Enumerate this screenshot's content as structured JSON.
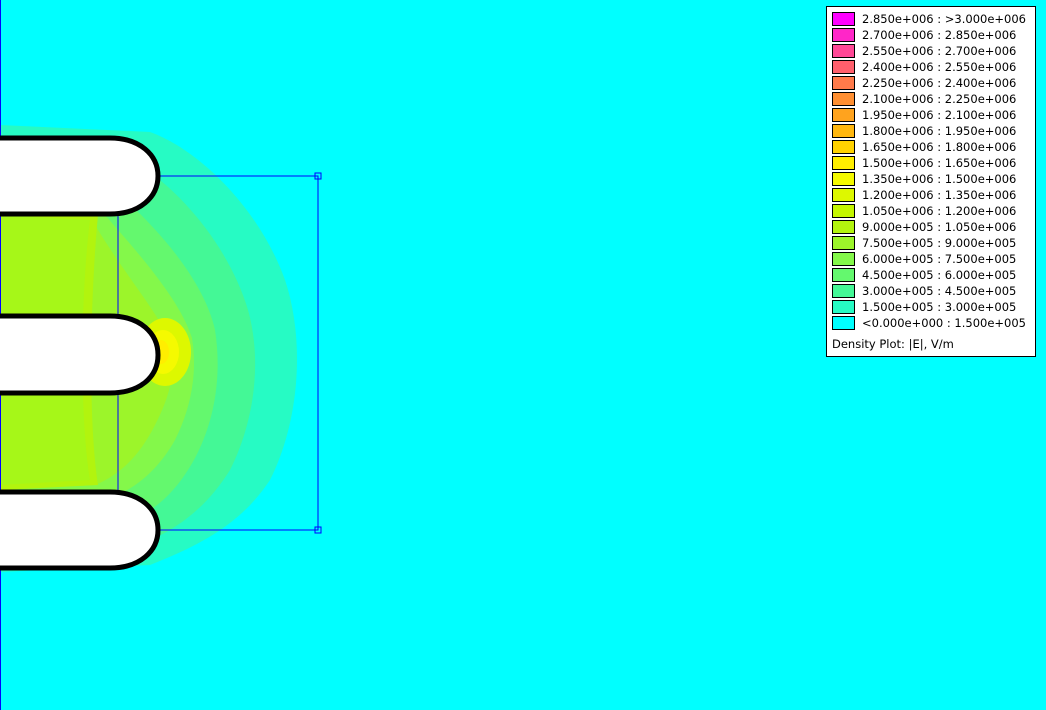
{
  "plot": {
    "background_color": "#00ffff",
    "boundary_line_color": "#0000ff",
    "conductor_fill": "#ffffff",
    "conductor_outline": "#000000"
  },
  "legend": {
    "entries": [
      {
        "label": "2.850e+006 : >3.000e+006",
        "color": "#ff00ff"
      },
      {
        "label": "2.700e+006 : 2.850e+006",
        "color": "#ff26c8"
      },
      {
        "label": "2.550e+006 : 2.700e+006",
        "color": "#ff4796"
      },
      {
        "label": "2.400e+006 : 2.550e+006",
        "color": "#ff5f6c"
      },
      {
        "label": "2.250e+006 : 2.400e+006",
        "color": "#ff7a4a"
      },
      {
        "label": "2.100e+006 : 2.250e+006",
        "color": "#ff8f32"
      },
      {
        "label": "1.950e+006 : 2.100e+006",
        "color": "#ffa31e"
      },
      {
        "label": "1.800e+006 : 1.950e+006",
        "color": "#ffb70e"
      },
      {
        "label": "1.650e+006 : 1.800e+006",
        "color": "#ffd200"
      },
      {
        "label": "1.500e+006 : 1.650e+006",
        "color": "#ffee00"
      },
      {
        "label": "1.350e+006 : 1.500e+006",
        "color": "#f5fa00"
      },
      {
        "label": "1.200e+006 : 1.350e+006",
        "color": "#ddf800"
      },
      {
        "label": "1.050e+006 : 1.200e+006",
        "color": "#c4f600"
      },
      {
        "label": "9.000e+005 : 1.050e+006",
        "color": "#b2f40e"
      },
      {
        "label": "7.500e+005 : 9.000e+005",
        "color": "#9cf52a"
      },
      {
        "label": "6.000e+005 : 7.500e+005",
        "color": "#84f84a"
      },
      {
        "label": "4.500e+005 : 6.000e+005",
        "color": "#64f86e"
      },
      {
        "label": "3.000e+005 : 4.500e+005",
        "color": "#44f896"
      },
      {
        "label": "1.500e+005 : 3.000e+005",
        "color": "#26fbc4"
      },
      {
        "label": "<0.000e+000 : 1.500e+005",
        "color": "#00ffff"
      }
    ],
    "caption": "Density Plot: |E|, V/m"
  }
}
